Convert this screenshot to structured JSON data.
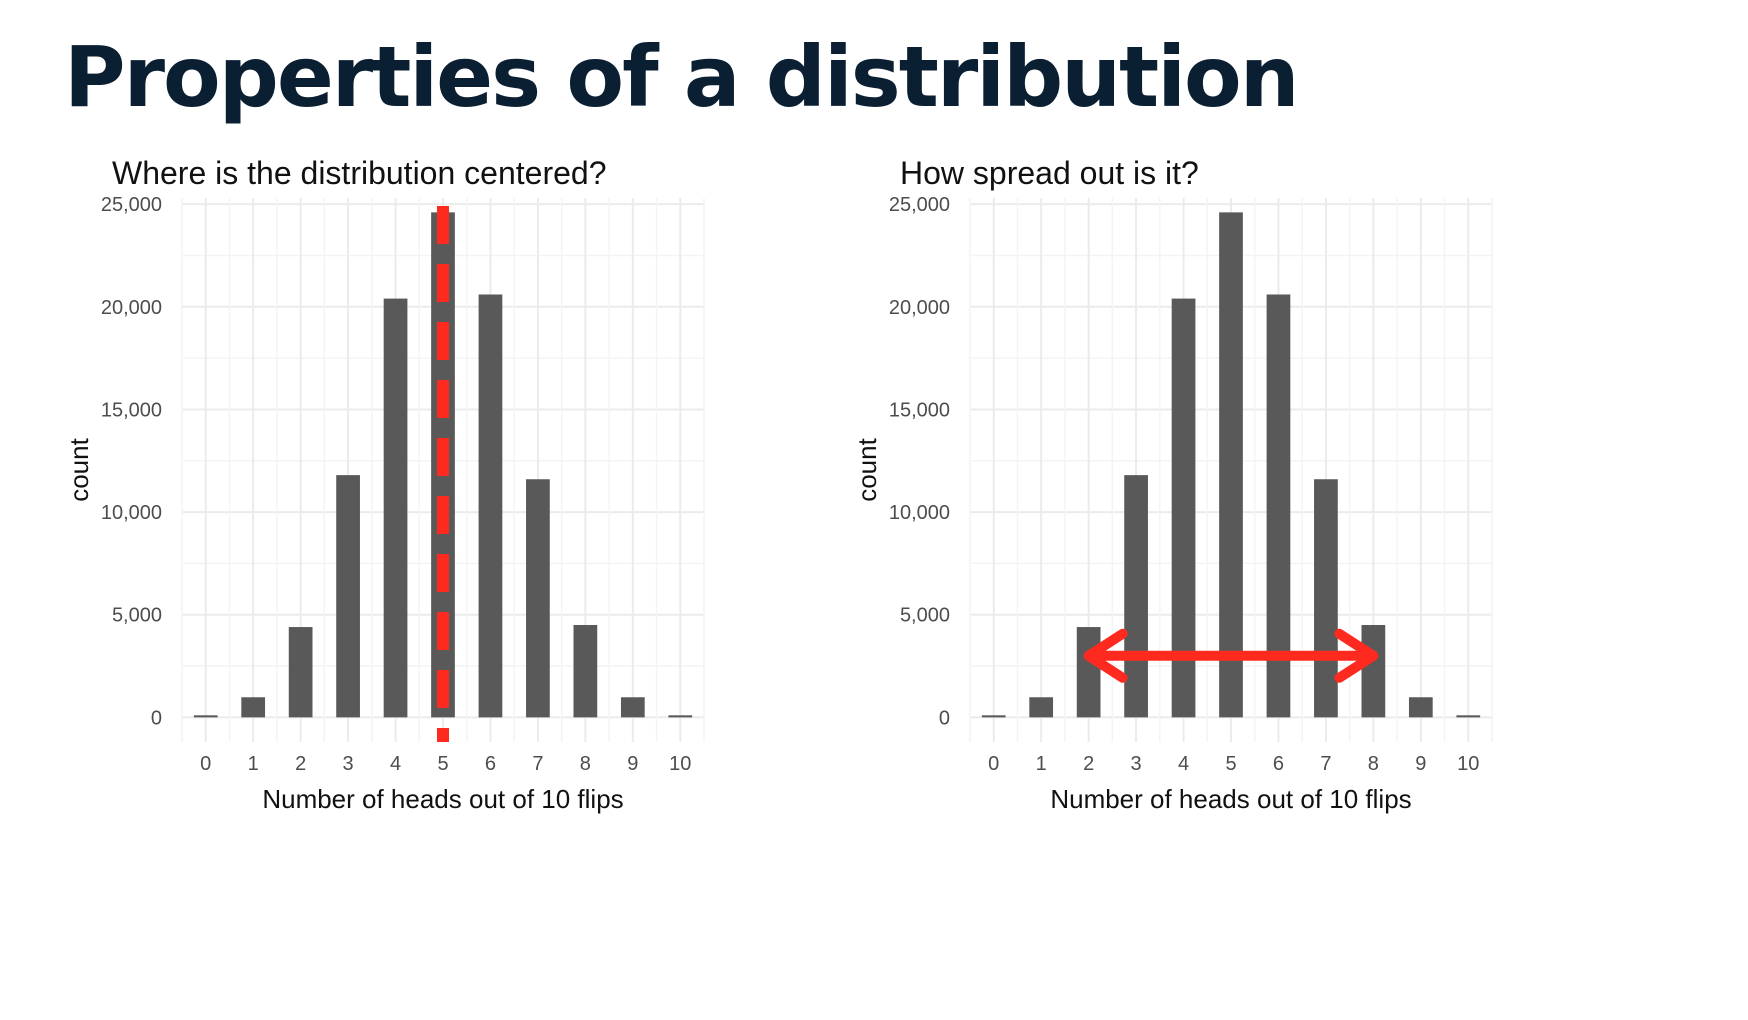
{
  "slide": {
    "title": "Properties of a distribution"
  },
  "colors": {
    "title": "#0b1f33",
    "bar": "#595959",
    "grid_major": "#ebebeb",
    "grid_minor": "#f4f4f4",
    "annotation": "#ff2a1f"
  },
  "chart_data": [
    {
      "type": "bar",
      "title": "Where is the distribution centered?",
      "xlabel": "Number of heads out of 10 flips",
      "ylabel": "count",
      "categories": [
        "0",
        "1",
        "2",
        "3",
        "4",
        "5",
        "6",
        "7",
        "8",
        "9",
        "10"
      ],
      "values": [
        100,
        980,
        4400,
        11800,
        20400,
        24600,
        20600,
        11600,
        4500,
        980,
        100
      ],
      "yticks": [
        0,
        5000,
        10000,
        15000,
        20000,
        25000
      ],
      "ytick_labels": [
        "0",
        "5,000",
        "10,000",
        "15,000",
        "20,000",
        "25,000"
      ],
      "ylim": [
        -1200,
        25300
      ],
      "grid": true,
      "annotation": {
        "type": "dashed-vertical-line",
        "x": 5,
        "color": "#ff2a1f"
      }
    },
    {
      "type": "bar",
      "title": "How spread out is it?",
      "xlabel": "Number of heads out of 10 flips",
      "ylabel": "count",
      "categories": [
        "0",
        "1",
        "2",
        "3",
        "4",
        "5",
        "6",
        "7",
        "8",
        "9",
        "10"
      ],
      "values": [
        100,
        980,
        4400,
        11800,
        20400,
        24600,
        20600,
        11600,
        4500,
        980,
        100
      ],
      "yticks": [
        0,
        5000,
        10000,
        15000,
        20000,
        25000
      ],
      "ytick_labels": [
        "0",
        "5,000",
        "10,000",
        "15,000",
        "20,000",
        "25,000"
      ],
      "ylim": [
        -1200,
        25300
      ],
      "grid": true,
      "annotation": {
        "type": "double-arrow",
        "x_from": 2,
        "x_to": 8,
        "y": 3000,
        "color": "#ff2a1f"
      }
    }
  ]
}
